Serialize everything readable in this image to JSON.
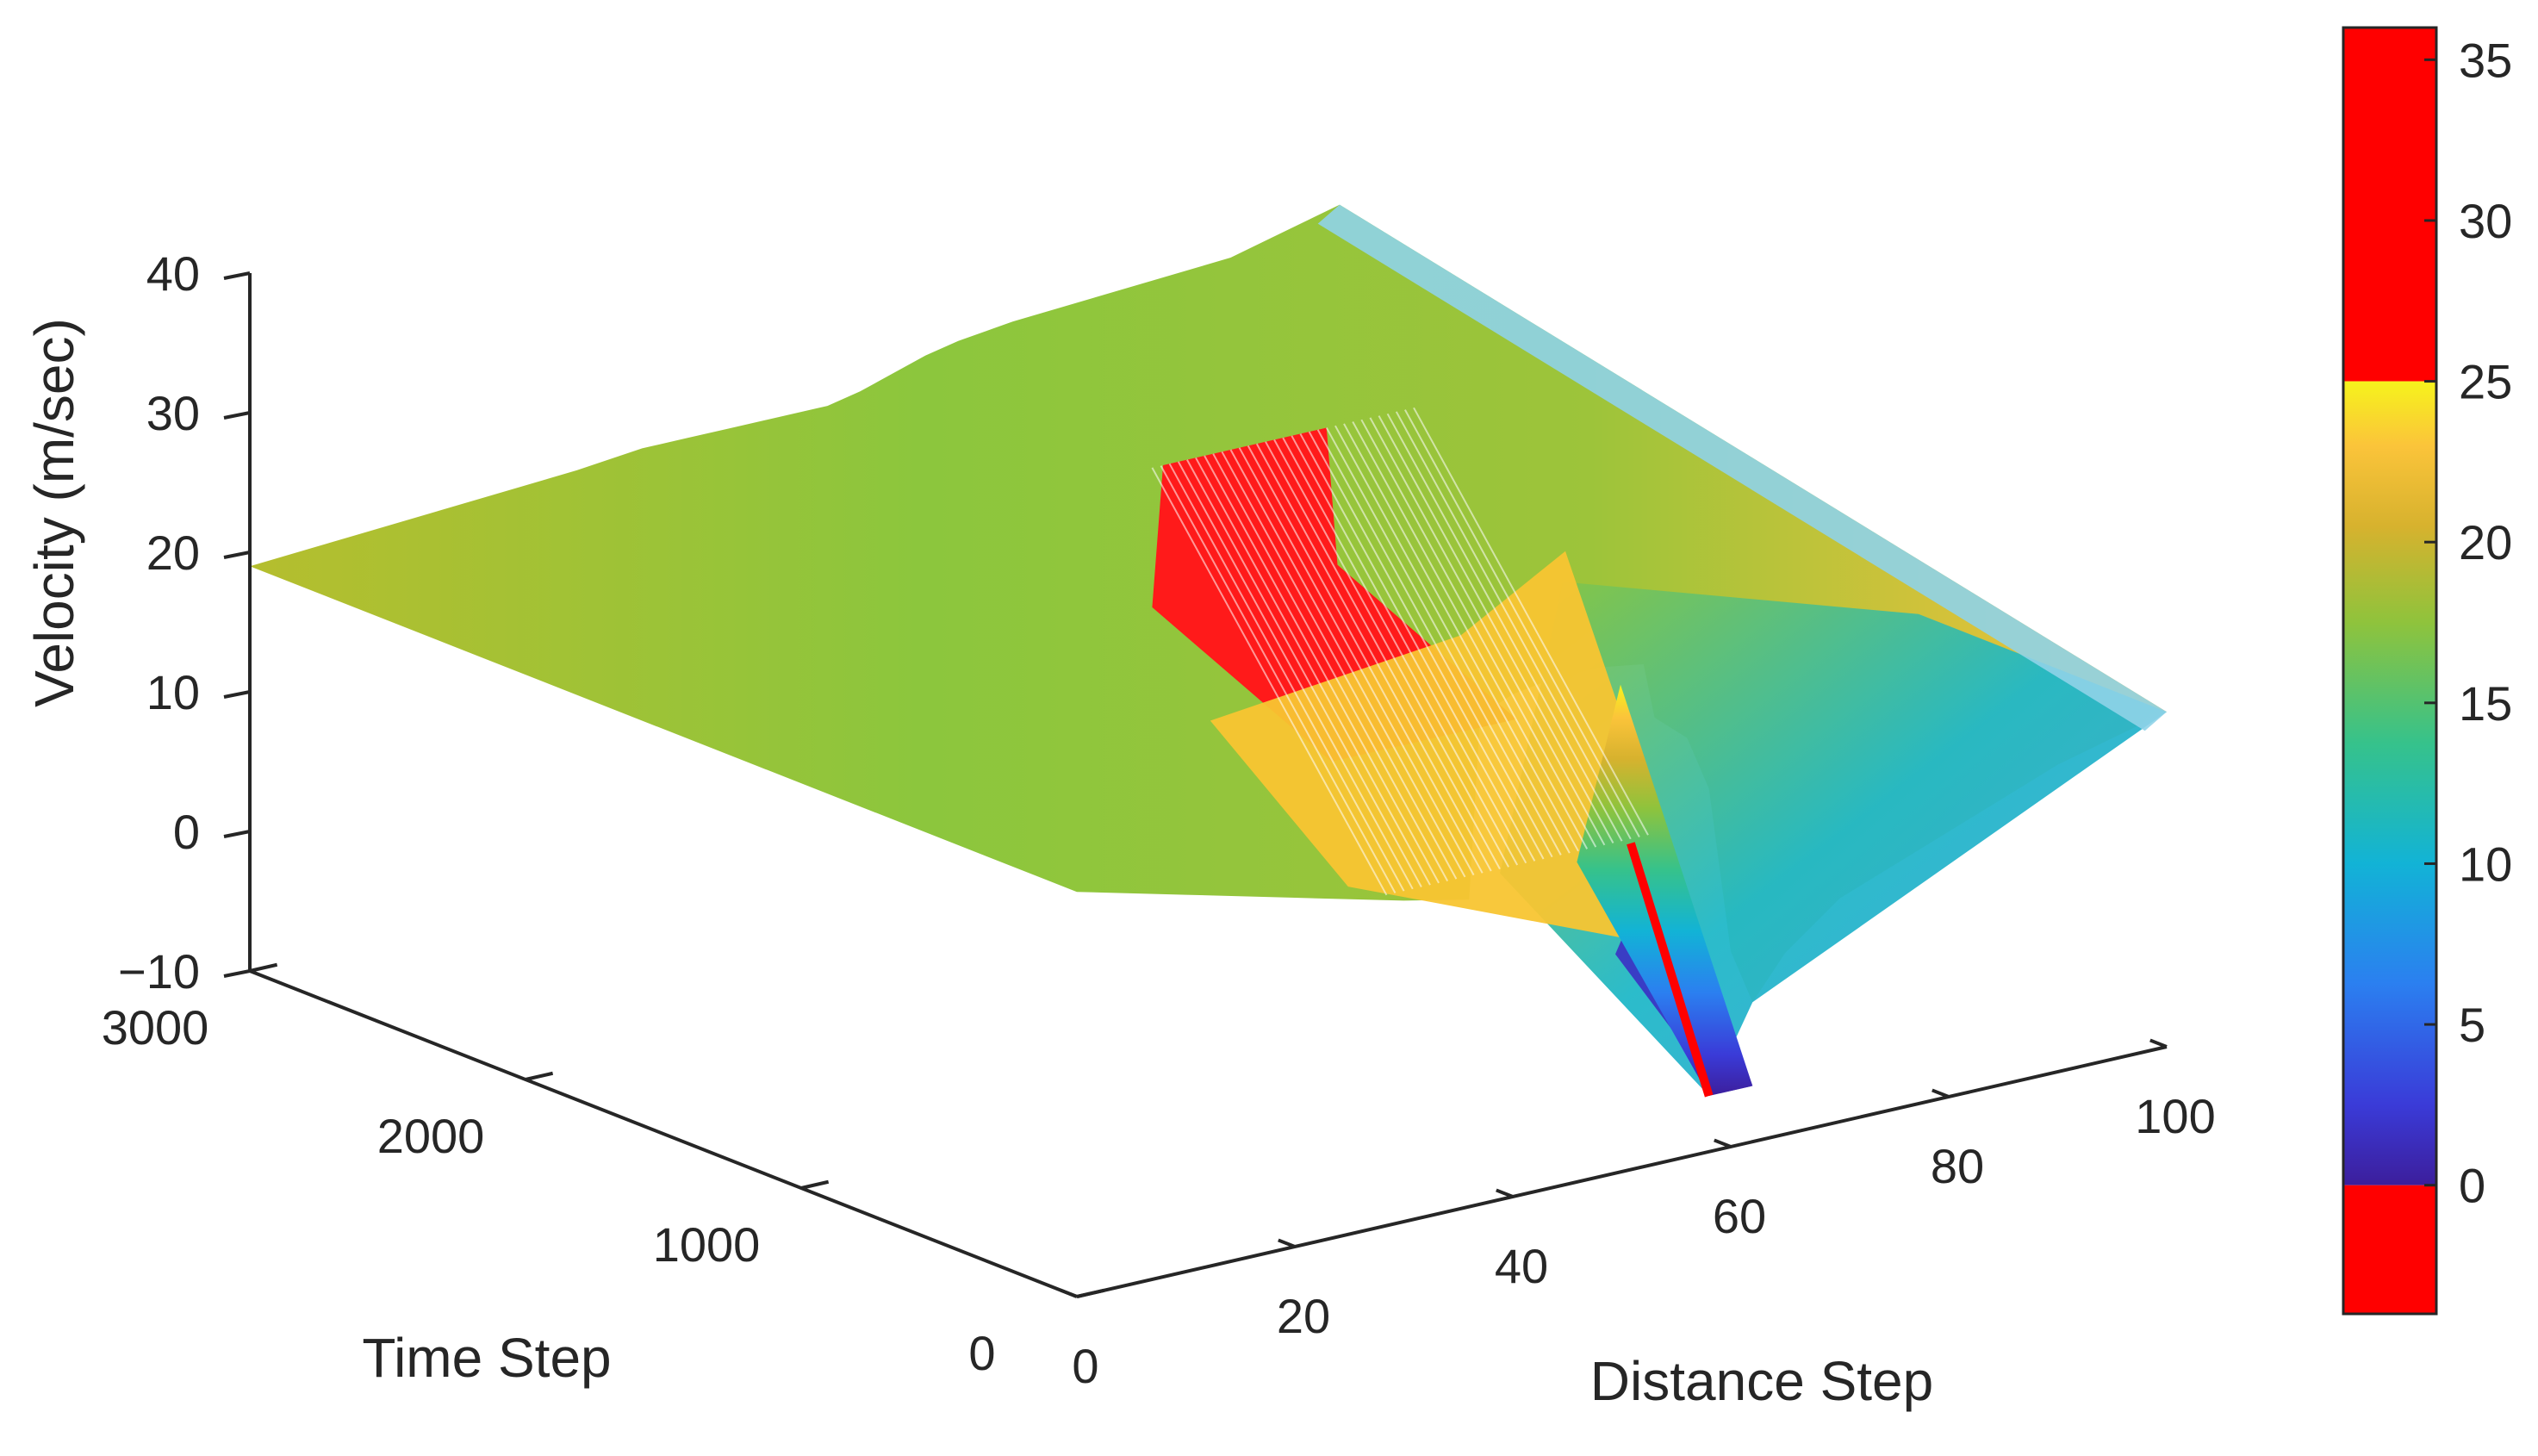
{
  "chart_data": {
    "type": "surface",
    "title": "",
    "xlabel": "Distance Step",
    "ylabel": "Time Step",
    "zlabel": "Velocity (m/sec)",
    "x_range": [
      0,
      100
    ],
    "y_range": [
      0,
      3000
    ],
    "z_range": [
      -10,
      40
    ],
    "x_ticks": [
      "0",
      "20",
      "40",
      "60",
      "80",
      "100"
    ],
    "y_ticks": [
      "0",
      "1000",
      "2000",
      "3000"
    ],
    "z_ticks": [
      "−10",
      "0",
      "10",
      "20",
      "30",
      "40"
    ],
    "colorbar": {
      "ticks": [
        "0",
        "5",
        "10",
        "15",
        "20",
        "25",
        "30",
        "35"
      ],
      "range": [
        -4,
        36
      ],
      "low_color": "#ff0000",
      "high_color": "#ff0000",
      "low_below": 0,
      "high_above": 25
    },
    "surface_profile": {
      "x": [
        0,
        10,
        20,
        30,
        36,
        37,
        40,
        44,
        48,
        52,
        53,
        56,
        58,
        60,
        62,
        65,
        70,
        80,
        90,
        95,
        100
      ],
      "z_end_time": [
        19,
        19.5,
        20,
        20.5,
        21,
        21,
        21,
        21,
        21,
        21,
        21,
        21.5,
        22,
        22.5,
        23,
        23.5,
        24,
        24.5,
        25,
        26,
        27
      ],
      "z_start_time": [
        19,
        17,
        15,
        13,
        12,
        25,
        26,
        26.5,
        26.5,
        26,
        22,
        20,
        16,
        4,
        0,
        3,
        6,
        9,
        12,
        13,
        14
      ]
    },
    "disturbance": {
      "x_start": 36,
      "x_end": 52,
      "z_peak": 28,
      "x_dip": 60,
      "z_dip": -6
    }
  }
}
